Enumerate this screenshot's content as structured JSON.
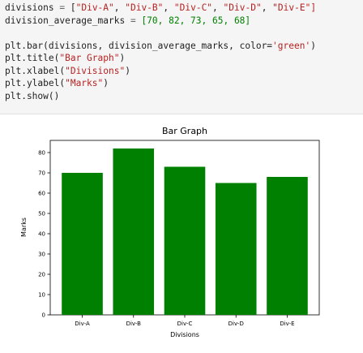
{
  "code": {
    "line1_name": "divisions",
    "line1_strings": [
      "\"Div-A\"",
      "\"Div-B\"",
      "\"Div-C\"",
      "\"Div-D\"",
      "\"Div-E\"]"
    ],
    "line2_name": "division_average_marks",
    "line2_values": "[70, 82, 73, 65, 68]",
    "line4_call": "plt.bar(divisions, division_average_marks, color=",
    "line4_color": "'green'",
    "line5_call": "plt.title(",
    "line5_arg": "\"Bar Graph\"",
    "line6_call": "plt.xlabel(",
    "line6_arg": "\"Divisions\"",
    "line7_call": "plt.ylabel(",
    "line7_arg": "\"Marks\"",
    "line8_call": "plt.show()"
  },
  "chart_data": {
    "type": "bar",
    "title": "Bar Graph",
    "xlabel": "Divisions",
    "ylabel": "Marks",
    "categories": [
      "Div-A",
      "Div-B",
      "Div-C",
      "Div-D",
      "Div-E"
    ],
    "values": [
      70,
      82,
      73,
      65,
      68
    ],
    "ylim": [
      0,
      86
    ],
    "yticks": [
      0,
      10,
      20,
      30,
      40,
      50,
      60,
      70,
      80
    ],
    "bar_color": "#008000",
    "grid": false
  }
}
